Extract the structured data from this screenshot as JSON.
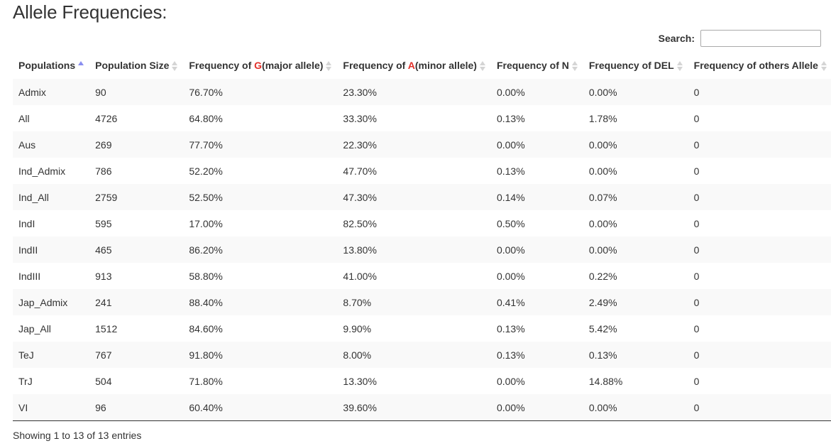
{
  "page": {
    "title": "Allele Frequencies:"
  },
  "search": {
    "label": "Search:",
    "value": "",
    "placeholder": ""
  },
  "table": {
    "headers": {
      "population": "Populations",
      "size": "Population Size",
      "g_prefix": "Frequency of ",
      "g_allele": "G",
      "g_suffix": "(major allele)",
      "a_prefix": "Frequency of ",
      "a_allele": "A",
      "a_suffix": "(minor allele)",
      "n": "Frequency of N",
      "del": "Frequency of DEL",
      "others": "Frequency of others Allele"
    },
    "sort": {
      "column": "Populations",
      "direction": "ascending"
    },
    "rows": [
      {
        "population": "Admix",
        "size": "90",
        "g": "76.70%",
        "a": "23.30%",
        "n": "0.00%",
        "del": "0.00%",
        "others": "0"
      },
      {
        "population": "All",
        "size": "4726",
        "g": "64.80%",
        "a": "33.30%",
        "n": "0.13%",
        "del": "1.78%",
        "others": "0"
      },
      {
        "population": "Aus",
        "size": "269",
        "g": "77.70%",
        "a": "22.30%",
        "n": "0.00%",
        "del": "0.00%",
        "others": "0"
      },
      {
        "population": "Ind_Admix",
        "size": "786",
        "g": "52.20%",
        "a": "47.70%",
        "n": "0.13%",
        "del": "0.00%",
        "others": "0"
      },
      {
        "population": "Ind_All",
        "size": "2759",
        "g": "52.50%",
        "a": "47.30%",
        "n": "0.14%",
        "del": "0.07%",
        "others": "0"
      },
      {
        "population": "IndI",
        "size": "595",
        "g": "17.00%",
        "a": "82.50%",
        "n": "0.50%",
        "del": "0.00%",
        "others": "0"
      },
      {
        "population": "IndII",
        "size": "465",
        "g": "86.20%",
        "a": "13.80%",
        "n": "0.00%",
        "del": "0.00%",
        "others": "0"
      },
      {
        "population": "IndIII",
        "size": "913",
        "g": "58.80%",
        "a": "41.00%",
        "n": "0.00%",
        "del": "0.22%",
        "others": "0"
      },
      {
        "population": "Jap_Admix",
        "size": "241",
        "g": "88.40%",
        "a": "8.70%",
        "n": "0.41%",
        "del": "2.49%",
        "others": "0"
      },
      {
        "population": "Jap_All",
        "size": "1512",
        "g": "84.60%",
        "a": "9.90%",
        "n": "0.13%",
        "del": "5.42%",
        "others": "0"
      },
      {
        "population": "TeJ",
        "size": "767",
        "g": "91.80%",
        "a": "8.00%",
        "n": "0.13%",
        "del": "0.13%",
        "others": "0"
      },
      {
        "population": "TrJ",
        "size": "504",
        "g": "71.80%",
        "a": "13.30%",
        "n": "0.00%",
        "del": "14.88%",
        "others": "0"
      },
      {
        "population": "VI",
        "size": "96",
        "g": "60.40%",
        "a": "39.60%",
        "n": "0.00%",
        "del": "0.00%",
        "others": "0"
      }
    ]
  },
  "footer": {
    "info": "Showing 1 to 13 of 13 entries"
  },
  "colors": {
    "allele_highlight": "#e2302a",
    "sort_active": "#8a8ef0",
    "sort_inactive": "#d4d4d4",
    "stripe": "#f9f9f9"
  }
}
